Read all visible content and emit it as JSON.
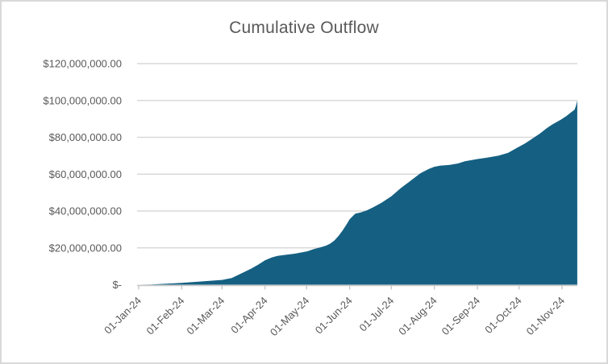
{
  "window": {
    "background_color": "#ffffff",
    "border_color": "#d9d9d9"
  },
  "chart": {
    "title": "Cumulative Outflow",
    "title_color": "#595959",
    "area_color": "#156082",
    "gridline_color": "#d9d9d9",
    "axis_line_color": "#c6c6c6",
    "tick_label_color": "#595959"
  },
  "chart_data": {
    "type": "area",
    "title": "Cumulative Outflow",
    "xlabel": "",
    "ylabel": "",
    "legend": "none",
    "grid": "horizontal",
    "ylim": [
      0,
      120000000
    ],
    "y_ticks": [
      {
        "label": "$-",
        "value": 0
      },
      {
        "label": "$20,000,000.00",
        "value": 20000000
      },
      {
        "label": "$40,000,000.00",
        "value": 40000000
      },
      {
        "label": "$60,000,000.00",
        "value": 60000000
      },
      {
        "label": "$80,000,000.00",
        "value": 80000000
      },
      {
        "label": "$100,000,000.00",
        "value": 100000000
      },
      {
        "label": "$120,000,000.00",
        "value": 120000000
      }
    ],
    "x_ticks": [
      {
        "label": "01-Jan-24",
        "day": 0
      },
      {
        "label": "01-Feb-24",
        "day": 31
      },
      {
        "label": "01-Mar-24",
        "day": 60
      },
      {
        "label": "01-Apr-24",
        "day": 91
      },
      {
        "label": "01-May-24",
        "day": 121
      },
      {
        "label": "01-Jun-24",
        "day": 152
      },
      {
        "label": "01-Jul-24",
        "day": 182
      },
      {
        "label": "01-Aug-24",
        "day": 213
      },
      {
        "label": "01-Sep-24",
        "day": 244
      },
      {
        "label": "01-Oct-24",
        "day": 274
      },
      {
        "label": "01-Nov-24",
        "day": 305
      }
    ],
    "x_range_days": [
      0,
      316
    ],
    "points_format": "[day_index_from_01-Jan-24, cumulative_outflow_dollars]",
    "series": [
      {
        "name": "Cumulative Outflow",
        "points": [
          [
            0,
            0
          ],
          [
            9,
            100000
          ],
          [
            19,
            500000
          ],
          [
            25,
            700000
          ],
          [
            31,
            1000000
          ],
          [
            40,
            1500000
          ],
          [
            50,
            2000000
          ],
          [
            60,
            2600000
          ],
          [
            67,
            3600000
          ],
          [
            75,
            6500000
          ],
          [
            81,
            8700000
          ],
          [
            86,
            10800000
          ],
          [
            91,
            13200000
          ],
          [
            96,
            14800000
          ],
          [
            100,
            15600000
          ],
          [
            106,
            16200000
          ],
          [
            112,
            16800000
          ],
          [
            121,
            18000000
          ],
          [
            126,
            19300000
          ],
          [
            131,
            20300000
          ],
          [
            135,
            21200000
          ],
          [
            138,
            22300000
          ],
          [
            141,
            24000000
          ],
          [
            144,
            26500000
          ],
          [
            147,
            29500000
          ],
          [
            150,
            33000000
          ],
          [
            152,
            35500000
          ],
          [
            156,
            38500000
          ],
          [
            160,
            39200000
          ],
          [
            164,
            40200000
          ],
          [
            169,
            42000000
          ],
          [
            175,
            44500000
          ],
          [
            182,
            48000000
          ],
          [
            189,
            52500000
          ],
          [
            196,
            56500000
          ],
          [
            203,
            60500000
          ],
          [
            209,
            62800000
          ],
          [
            213,
            64000000
          ],
          [
            217,
            64600000
          ],
          [
            224,
            65000000
          ],
          [
            230,
            65800000
          ],
          [
            235,
            67000000
          ],
          [
            244,
            68200000
          ],
          [
            251,
            69000000
          ],
          [
            259,
            70000000
          ],
          [
            266,
            71500000
          ],
          [
            273,
            74500000
          ],
          [
            278,
            76500000
          ],
          [
            281,
            78000000
          ],
          [
            285,
            80000000
          ],
          [
            289,
            82000000
          ],
          [
            294,
            85000000
          ],
          [
            298,
            87000000
          ],
          [
            304,
            89500000
          ],
          [
            308,
            91500000
          ],
          [
            312,
            93800000
          ],
          [
            314,
            95000000
          ],
          [
            315,
            97000000
          ],
          [
            316,
            100000000
          ]
        ]
      }
    ]
  }
}
